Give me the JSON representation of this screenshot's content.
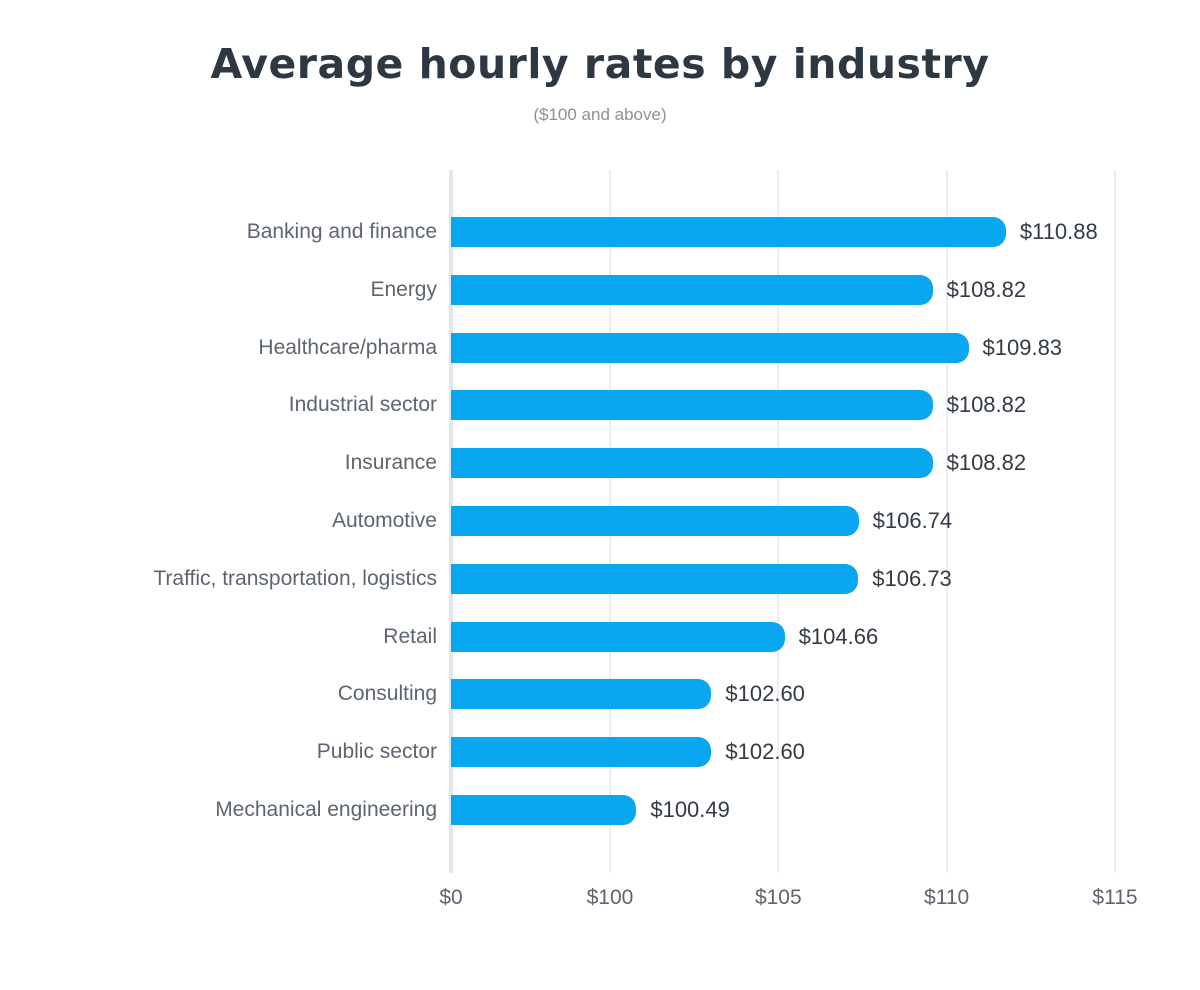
{
  "header": {
    "title": "Average hourly rates by industry",
    "subtitle": "($100 and above)"
  },
  "chart_data": {
    "type": "bar",
    "orientation": "horizontal",
    "title": "Average hourly rates by industry",
    "subtitle": "($100 and above)",
    "categories": [
      "Banking and finance",
      "Energy",
      "Healthcare/pharma",
      "Industrial sector",
      "Insurance",
      "Automotive",
      "Traffic, transportation, logistics",
      "Retail",
      "Consulting",
      "Public sector",
      "Mechanical engineering"
    ],
    "values": [
      110.88,
      108.82,
      109.83,
      108.82,
      108.82,
      106.74,
      106.73,
      104.66,
      102.6,
      102.6,
      100.49
    ],
    "value_labels": [
      "$110.88",
      "$108.82",
      "$109.83",
      "$108.82",
      "$108.82",
      "$106.74",
      "$106.73",
      "$104.66",
      "$102.60",
      "$102.60",
      "$100.49"
    ],
    "xlabel": "",
    "ylabel": "",
    "x_ticks": [
      {
        "label": "$0",
        "value": 0
      },
      {
        "label": "$100",
        "value": 100
      },
      {
        "label": "$105",
        "value": 105
      },
      {
        "label": "$110",
        "value": 110
      },
      {
        "label": "$115",
        "value": 115
      }
    ],
    "axis_break": {
      "note": "x axis is compressed between $0 and $100",
      "lower_value": 100,
      "upper_value": 115,
      "fraction_at_lower": 0.2239,
      "fraction_at_upper": 0.9352
    },
    "grid": "vertical-gridlines-on",
    "legend": "none",
    "colors": {
      "bar": "#08a7f0",
      "title": "#2d3843",
      "subtitle": "#8b9199",
      "category_label": "#5d6670",
      "value_label": "#323b44",
      "tick_label": "#5d6670",
      "gridline": "#ebedf0",
      "zero_axis_line": "#e4e7ea",
      "background": "#ffffff"
    }
  }
}
